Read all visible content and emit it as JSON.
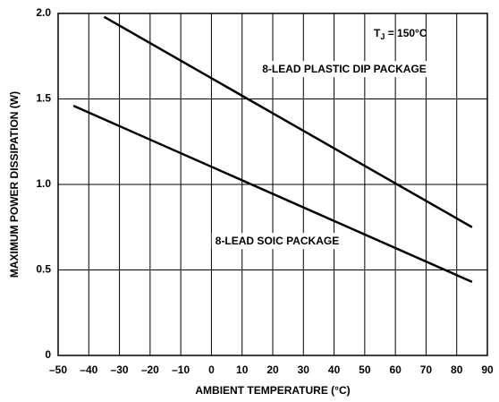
{
  "chart_data": {
    "type": "line",
    "annotation": {
      "text": "T",
      "sub": "J",
      "rest": " = 150°C"
    },
    "xlabel": "AMBIENT TEMPERATURE (°C)",
    "ylabel": "MAXIMUM POWER DISSIPATION (W)",
    "series": [
      {
        "name": "8-LEAD PLASTIC DIP PACKAGE",
        "color": "#000000",
        "x": [
          -35,
          85
        ],
        "values": [
          1.98,
          0.75
        ]
      },
      {
        "name": "8-LEAD SOIC PACKAGE",
        "color": "#000000",
        "x": [
          -45,
          85
        ],
        "values": [
          1.46,
          0.43
        ]
      }
    ],
    "xlim": [
      -50,
      90
    ],
    "xticks": [
      {
        "value": -50,
        "label": "–50"
      },
      {
        "value": -40,
        "label": "–40"
      },
      {
        "value": -30,
        "label": "–30"
      },
      {
        "value": -20,
        "label": "–20"
      },
      {
        "value": -10,
        "label": "–10"
      },
      0,
      10,
      20,
      30,
      40,
      50,
      60,
      70,
      80,
      90
    ],
    "ylim": [
      0,
      2.0
    ],
    "yticks": [
      0,
      0.5,
      {
        "value": 1.0,
        "label": "1.0"
      },
      {
        "value": 1.5,
        "label": "1.5"
      },
      {
        "value": 2.0,
        "label": "2.0"
      }
    ],
    "grid": true
  }
}
